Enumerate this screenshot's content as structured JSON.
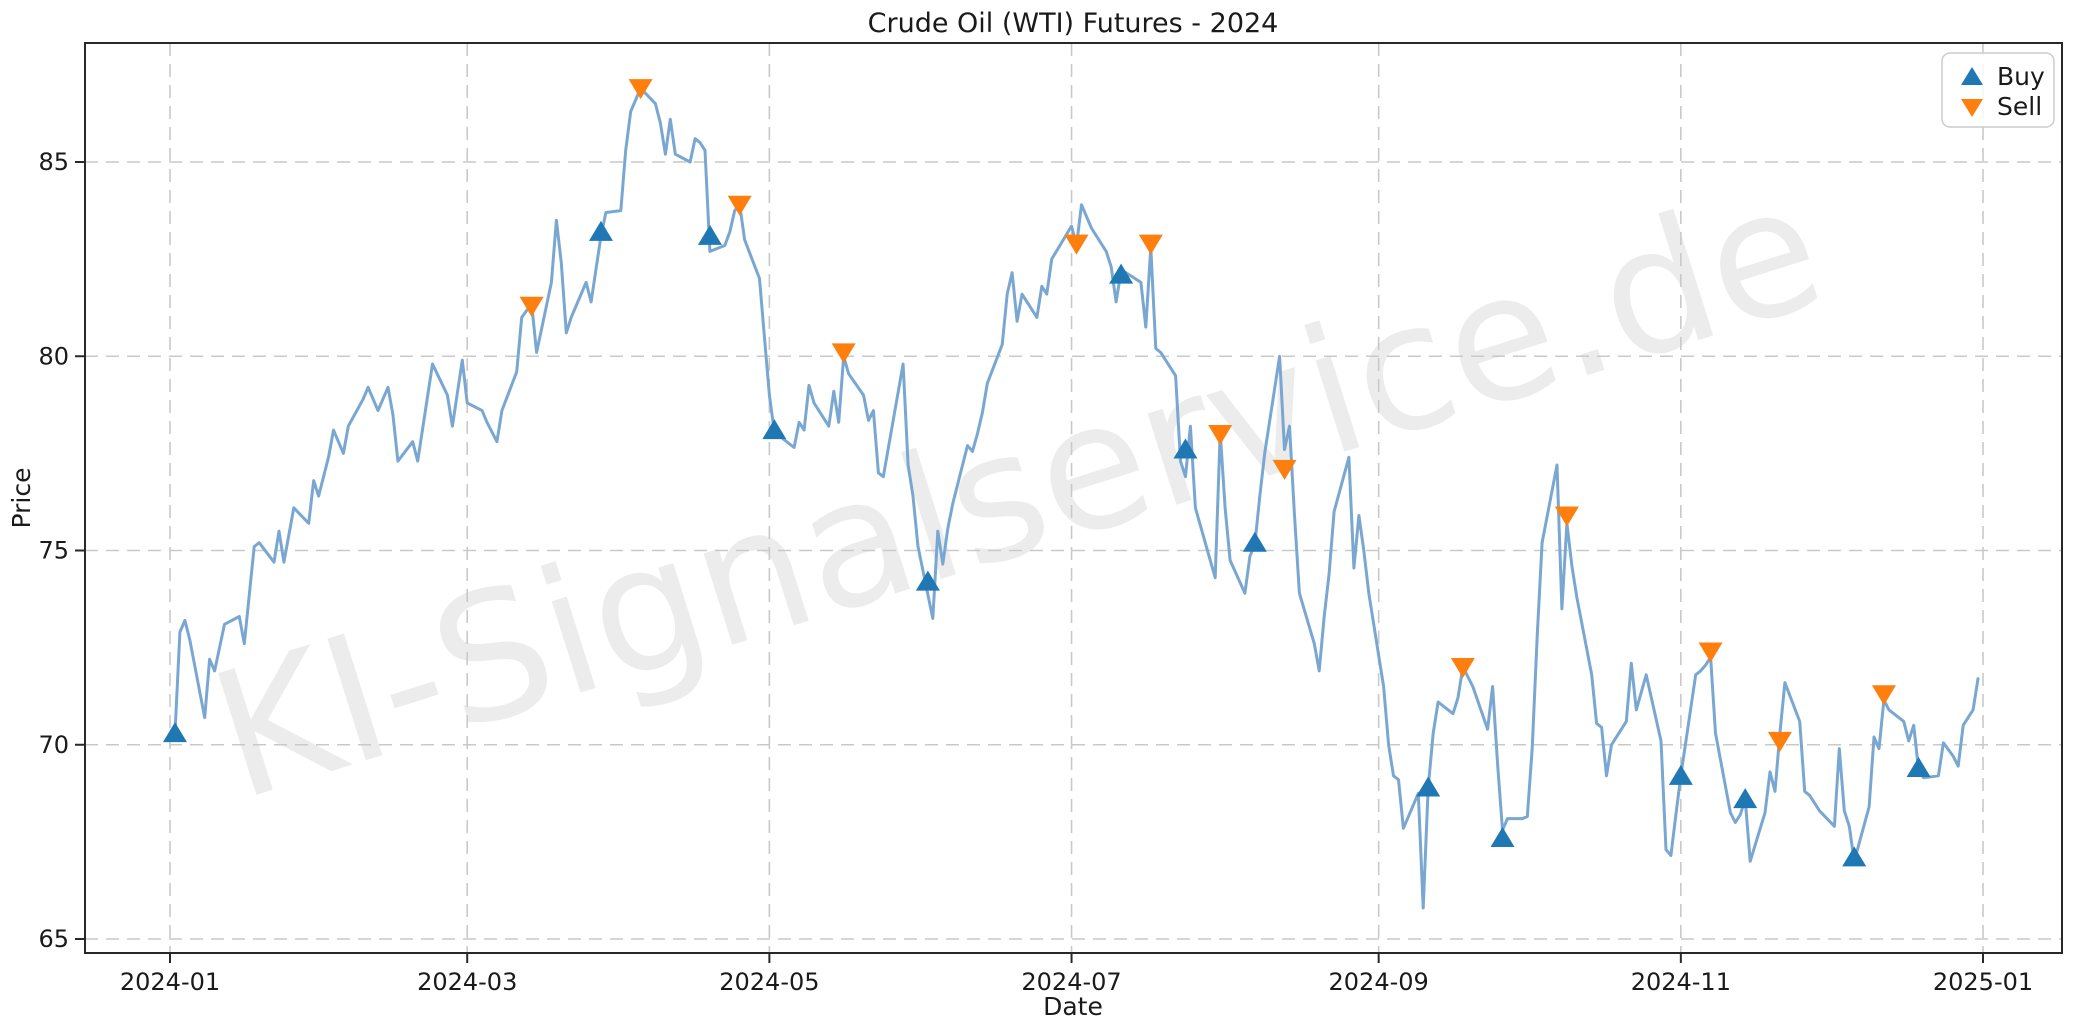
{
  "title": "Crude Oil (WTI) Futures - 2024",
  "watermark": "KI-Signalservice.de",
  "legend": {
    "buy_label": "Buy",
    "sell_label": "Sell",
    "position": "upper right"
  },
  "colors": {
    "price_line": "#79a7d2",
    "buy_marker": "#1f77b4",
    "sell_marker": "#ff7f0e",
    "grid": "#c9c9c9",
    "spine": "#282828",
    "text": "#1a1a1a",
    "legend_border": "#cccccc",
    "watermark": "rgba(0,0,0,0.075)"
  },
  "chart_data": {
    "type": "line",
    "title": "Crude Oil (WTI) Futures - 2024",
    "xlabel": "Date",
    "ylabel": "Price",
    "grid": true,
    "legend_position": "upper right",
    "ylim": [
      64.6,
      88.1
    ],
    "y_ticks": [
      65,
      70,
      75,
      80,
      85
    ],
    "x_ticks": [
      {
        "label": "2024-01",
        "date": "2024-01-01"
      },
      {
        "label": "2024-03",
        "date": "2024-03-01"
      },
      {
        "label": "2024-05",
        "date": "2024-05-01"
      },
      {
        "label": "2024-07",
        "date": "2024-07-01"
      },
      {
        "label": "2024-09",
        "date": "2024-09-01"
      },
      {
        "label": "2024-11",
        "date": "2024-11-01"
      },
      {
        "label": "2025-01",
        "date": "2025-01-01"
      }
    ],
    "series": [
      {
        "name": "Price",
        "points": [
          [
            "2024-01-02",
            70.3
          ],
          [
            "2024-01-03",
            72.9
          ],
          [
            "2024-01-04",
            73.2
          ],
          [
            "2024-01-05",
            72.7
          ],
          [
            "2024-01-08",
            70.7
          ],
          [
            "2024-01-09",
            72.2
          ],
          [
            "2024-01-10",
            71.9
          ],
          [
            "2024-01-12",
            73.1
          ],
          [
            "2024-01-15",
            73.3
          ],
          [
            "2024-01-16",
            72.6
          ],
          [
            "2024-01-18",
            75.1
          ],
          [
            "2024-01-19",
            75.2
          ],
          [
            "2024-01-22",
            74.7
          ],
          [
            "2024-01-23",
            75.5
          ],
          [
            "2024-01-24",
            74.7
          ],
          [
            "2024-01-26",
            76.1
          ],
          [
            "2024-01-29",
            75.7
          ],
          [
            "2024-01-30",
            76.8
          ],
          [
            "2024-01-31",
            76.4
          ],
          [
            "2024-02-02",
            77.4
          ],
          [
            "2024-02-03",
            78.1
          ],
          [
            "2024-02-05",
            77.5
          ],
          [
            "2024-02-06",
            78.2
          ],
          [
            "2024-02-09",
            78.9
          ],
          [
            "2024-02-10",
            79.2
          ],
          [
            "2024-02-12",
            78.6
          ],
          [
            "2024-02-14",
            79.2
          ],
          [
            "2024-02-15",
            78.5
          ],
          [
            "2024-02-16",
            77.3
          ],
          [
            "2024-02-19",
            77.8
          ],
          [
            "2024-02-20",
            77.3
          ],
          [
            "2024-02-23",
            79.8
          ],
          [
            "2024-02-26",
            79.0
          ],
          [
            "2024-02-27",
            78.2
          ],
          [
            "2024-02-29",
            79.9
          ],
          [
            "2024-03-01",
            78.8
          ],
          [
            "2024-03-04",
            78.6
          ],
          [
            "2024-03-05",
            78.3
          ],
          [
            "2024-03-07",
            77.8
          ],
          [
            "2024-03-08",
            78.6
          ],
          [
            "2024-03-11",
            79.6
          ],
          [
            "2024-03-12",
            81.0
          ],
          [
            "2024-03-14",
            81.35
          ],
          [
            "2024-03-15",
            80.1
          ],
          [
            "2024-03-18",
            81.9
          ],
          [
            "2024-03-19",
            83.5
          ],
          [
            "2024-03-20",
            82.4
          ],
          [
            "2024-03-21",
            80.6
          ],
          [
            "2024-03-22",
            81.0
          ],
          [
            "2024-03-25",
            81.9
          ],
          [
            "2024-03-26",
            81.4
          ],
          [
            "2024-03-28",
            83.1
          ],
          [
            "2024-03-29",
            83.7
          ],
          [
            "2024-04-01",
            83.75
          ],
          [
            "2024-04-02",
            85.3
          ],
          [
            "2024-04-03",
            86.3
          ],
          [
            "2024-04-05",
            86.9
          ],
          [
            "2024-04-08",
            86.5
          ],
          [
            "2024-04-09",
            86.0
          ],
          [
            "2024-04-10",
            85.2
          ],
          [
            "2024-04-11",
            86.1
          ],
          [
            "2024-04-12",
            85.2
          ],
          [
            "2024-04-15",
            85.0
          ],
          [
            "2024-04-16",
            85.6
          ],
          [
            "2024-04-17",
            85.5
          ],
          [
            "2024-04-18",
            85.3
          ],
          [
            "2024-04-19",
            82.7
          ],
          [
            "2024-04-22",
            82.85
          ],
          [
            "2024-04-23",
            83.2
          ],
          [
            "2024-04-24",
            83.75
          ],
          [
            "2024-04-25",
            83.9
          ],
          [
            "2024-04-26",
            83.0
          ],
          [
            "2024-04-29",
            82.0
          ],
          [
            "2024-04-30",
            80.5
          ],
          [
            "2024-05-01",
            79.0
          ],
          [
            "2024-05-02",
            78.05
          ],
          [
            "2024-05-06",
            77.65
          ],
          [
            "2024-05-07",
            78.3
          ],
          [
            "2024-05-08",
            78.1
          ],
          [
            "2024-05-09",
            79.25
          ],
          [
            "2024-05-10",
            78.8
          ],
          [
            "2024-05-13",
            78.2
          ],
          [
            "2024-05-14",
            79.1
          ],
          [
            "2024-05-15",
            78.3
          ],
          [
            "2024-05-16",
            80.0
          ],
          [
            "2024-05-17",
            79.55
          ],
          [
            "2024-05-20",
            79.0
          ],
          [
            "2024-05-21",
            78.35
          ],
          [
            "2024-05-22",
            78.6
          ],
          [
            "2024-05-23",
            77.0
          ],
          [
            "2024-05-24",
            76.9
          ],
          [
            "2024-05-28",
            79.8
          ],
          [
            "2024-05-29",
            77.2
          ],
          [
            "2024-05-30",
            76.4
          ],
          [
            "2024-05-31",
            75.1
          ],
          [
            "2024-06-03",
            73.25
          ],
          [
            "2024-06-04",
            75.5
          ],
          [
            "2024-06-05",
            74.65
          ],
          [
            "2024-06-06",
            75.55
          ],
          [
            "2024-06-07",
            76.2
          ],
          [
            "2024-06-10",
            77.7
          ],
          [
            "2024-06-11",
            77.55
          ],
          [
            "2024-06-12",
            78.0
          ],
          [
            "2024-06-13",
            78.55
          ],
          [
            "2024-06-14",
            79.3
          ],
          [
            "2024-06-17",
            80.3
          ],
          [
            "2024-06-18",
            81.6
          ],
          [
            "2024-06-19",
            82.15
          ],
          [
            "2024-06-20",
            80.9
          ],
          [
            "2024-06-21",
            81.6
          ],
          [
            "2024-06-24",
            81.0
          ],
          [
            "2024-06-25",
            81.8
          ],
          [
            "2024-06-26",
            81.6
          ],
          [
            "2024-06-27",
            82.5
          ],
          [
            "2024-07-01",
            83.35
          ],
          [
            "2024-07-02",
            82.85
          ],
          [
            "2024-07-03",
            83.9
          ],
          [
            "2024-07-05",
            83.3
          ],
          [
            "2024-07-08",
            82.7
          ],
          [
            "2024-07-09",
            82.3
          ],
          [
            "2024-07-10",
            81.4
          ],
          [
            "2024-07-11",
            82.2
          ],
          [
            "2024-07-12",
            82.15
          ],
          [
            "2024-07-15",
            81.9
          ],
          [
            "2024-07-16",
            80.75
          ],
          [
            "2024-07-17",
            82.8
          ],
          [
            "2024-07-18",
            80.2
          ],
          [
            "2024-07-19",
            80.1
          ],
          [
            "2024-07-22",
            79.5
          ],
          [
            "2024-07-23",
            77.3
          ],
          [
            "2024-07-24",
            76.9
          ],
          [
            "2024-07-25",
            78.2
          ],
          [
            "2024-07-26",
            76.1
          ],
          [
            "2024-07-29",
            74.75
          ],
          [
            "2024-07-30",
            74.3
          ],
          [
            "2024-07-31",
            78.05
          ],
          [
            "2024-08-01",
            76.1
          ],
          [
            "2024-08-02",
            74.75
          ],
          [
            "2024-08-05",
            73.9
          ],
          [
            "2024-08-06",
            74.85
          ],
          [
            "2024-08-07",
            75.15
          ],
          [
            "2024-08-08",
            76.4
          ],
          [
            "2024-08-09",
            77.5
          ],
          [
            "2024-08-12",
            80.0
          ],
          [
            "2024-08-13",
            77.6
          ],
          [
            "2024-08-14",
            78.2
          ],
          [
            "2024-08-15",
            75.9
          ],
          [
            "2024-08-16",
            73.9
          ],
          [
            "2024-08-19",
            72.6
          ],
          [
            "2024-08-20",
            71.9
          ],
          [
            "2024-08-21",
            73.3
          ],
          [
            "2024-08-22",
            74.4
          ],
          [
            "2024-08-23",
            76.0
          ],
          [
            "2024-08-26",
            77.4
          ],
          [
            "2024-08-27",
            74.55
          ],
          [
            "2024-08-28",
            75.9
          ],
          [
            "2024-08-29",
            75.0
          ],
          [
            "2024-08-30",
            73.9
          ],
          [
            "2024-09-02",
            71.5
          ],
          [
            "2024-09-03",
            70.0
          ],
          [
            "2024-09-04",
            69.2
          ],
          [
            "2024-09-05",
            69.1
          ],
          [
            "2024-09-06",
            67.85
          ],
          [
            "2024-09-09",
            68.75
          ],
          [
            "2024-09-10",
            65.8
          ],
          [
            "2024-09-11",
            68.9
          ],
          [
            "2024-09-12",
            70.3
          ],
          [
            "2024-09-13",
            71.1
          ],
          [
            "2024-09-16",
            70.8
          ],
          [
            "2024-09-17",
            71.2
          ],
          [
            "2024-09-18",
            72.0
          ],
          [
            "2024-09-20",
            71.5
          ],
          [
            "2024-09-23",
            70.4
          ],
          [
            "2024-09-24",
            71.5
          ],
          [
            "2024-09-25",
            69.5
          ],
          [
            "2024-09-26",
            67.8
          ],
          [
            "2024-09-27",
            68.1
          ],
          [
            "2024-09-30",
            68.1
          ],
          [
            "2024-10-01",
            68.15
          ],
          [
            "2024-10-02",
            69.9
          ],
          [
            "2024-10-03",
            72.8
          ],
          [
            "2024-10-04",
            75.2
          ],
          [
            "2024-10-07",
            77.2
          ],
          [
            "2024-10-08",
            73.5
          ],
          [
            "2024-10-09",
            75.7
          ],
          [
            "2024-10-10",
            74.6
          ],
          [
            "2024-10-11",
            73.8
          ],
          [
            "2024-10-14",
            71.8
          ],
          [
            "2024-10-15",
            70.55
          ],
          [
            "2024-10-16",
            70.45
          ],
          [
            "2024-10-17",
            69.2
          ],
          [
            "2024-10-18",
            70.0
          ],
          [
            "2024-10-21",
            70.6
          ],
          [
            "2024-10-22",
            72.1
          ],
          [
            "2024-10-23",
            70.9
          ],
          [
            "2024-10-25",
            71.8
          ],
          [
            "2024-10-28",
            70.1
          ],
          [
            "2024-10-29",
            67.3
          ],
          [
            "2024-10-30",
            67.15
          ],
          [
            "2024-10-31",
            68.2
          ],
          [
            "2024-11-01",
            69.2
          ],
          [
            "2024-11-04",
            71.8
          ],
          [
            "2024-11-05",
            71.9
          ],
          [
            "2024-11-06",
            72.05
          ],
          [
            "2024-11-07",
            72.25
          ],
          [
            "2024-11-08",
            70.3
          ],
          [
            "2024-11-11",
            68.25
          ],
          [
            "2024-11-12",
            68.0
          ],
          [
            "2024-11-13",
            68.2
          ],
          [
            "2024-11-14",
            68.6
          ],
          [
            "2024-11-15",
            67.0
          ],
          [
            "2024-11-18",
            68.25
          ],
          [
            "2024-11-19",
            69.3
          ],
          [
            "2024-11-20",
            68.8
          ],
          [
            "2024-11-21",
            70.3
          ],
          [
            "2024-11-22",
            71.6
          ],
          [
            "2024-11-25",
            70.6
          ],
          [
            "2024-11-26",
            68.8
          ],
          [
            "2024-11-27",
            68.7
          ],
          [
            "2024-11-29",
            68.3
          ],
          [
            "2024-12-02",
            67.9
          ],
          [
            "2024-12-03",
            69.9
          ],
          [
            "2024-12-04",
            68.3
          ],
          [
            "2024-12-05",
            67.9
          ],
          [
            "2024-12-06",
            67.0
          ],
          [
            "2024-12-09",
            68.4
          ],
          [
            "2024-12-10",
            70.2
          ],
          [
            "2024-12-11",
            69.9
          ],
          [
            "2024-12-12",
            71.15
          ],
          [
            "2024-12-13",
            70.9
          ],
          [
            "2024-12-16",
            70.6
          ],
          [
            "2024-12-17",
            70.1
          ],
          [
            "2024-12-18",
            70.5
          ],
          [
            "2024-12-19",
            69.35
          ],
          [
            "2024-12-20",
            69.15
          ],
          [
            "2024-12-23",
            69.2
          ],
          [
            "2024-12-24",
            70.05
          ],
          [
            "2024-12-26",
            69.7
          ],
          [
            "2024-12-27",
            69.45
          ],
          [
            "2024-12-28",
            70.5
          ],
          [
            "2024-12-30",
            70.9
          ],
          [
            "2024-12-31",
            71.7
          ]
        ]
      }
    ],
    "buy_signals": [
      [
        "2024-01-02",
        70.3
      ],
      [
        "2024-03-28",
        83.2
      ],
      [
        "2024-04-19",
        83.1
      ],
      [
        "2024-05-02",
        78.1
      ],
      [
        "2024-06-02",
        74.2
      ],
      [
        "2024-07-11",
        82.1
      ],
      [
        "2024-07-24",
        77.6
      ],
      [
        "2024-08-07",
        75.2
      ],
      [
        "2024-09-11",
        68.9
      ],
      [
        "2024-09-26",
        67.6
      ],
      [
        "2024-11-01",
        69.2
      ],
      [
        "2024-11-14",
        68.6
      ],
      [
        "2024-12-06",
        67.1
      ],
      [
        "2024-12-19",
        69.4
      ]
    ],
    "sell_signals": [
      [
        "2024-03-14",
        81.3
      ],
      [
        "2024-04-05",
        86.9
      ],
      [
        "2024-04-25",
        83.9
      ],
      [
        "2024-05-16",
        80.1
      ],
      [
        "2024-07-02",
        82.9
      ],
      [
        "2024-07-17",
        82.9
      ],
      [
        "2024-07-31",
        78.0
      ],
      [
        "2024-08-13",
        77.1
      ],
      [
        "2024-09-18",
        72.0
      ],
      [
        "2024-10-09",
        75.9
      ],
      [
        "2024-11-07",
        72.4
      ],
      [
        "2024-11-21",
        70.1
      ],
      [
        "2024-12-12",
        71.3
      ]
    ]
  }
}
